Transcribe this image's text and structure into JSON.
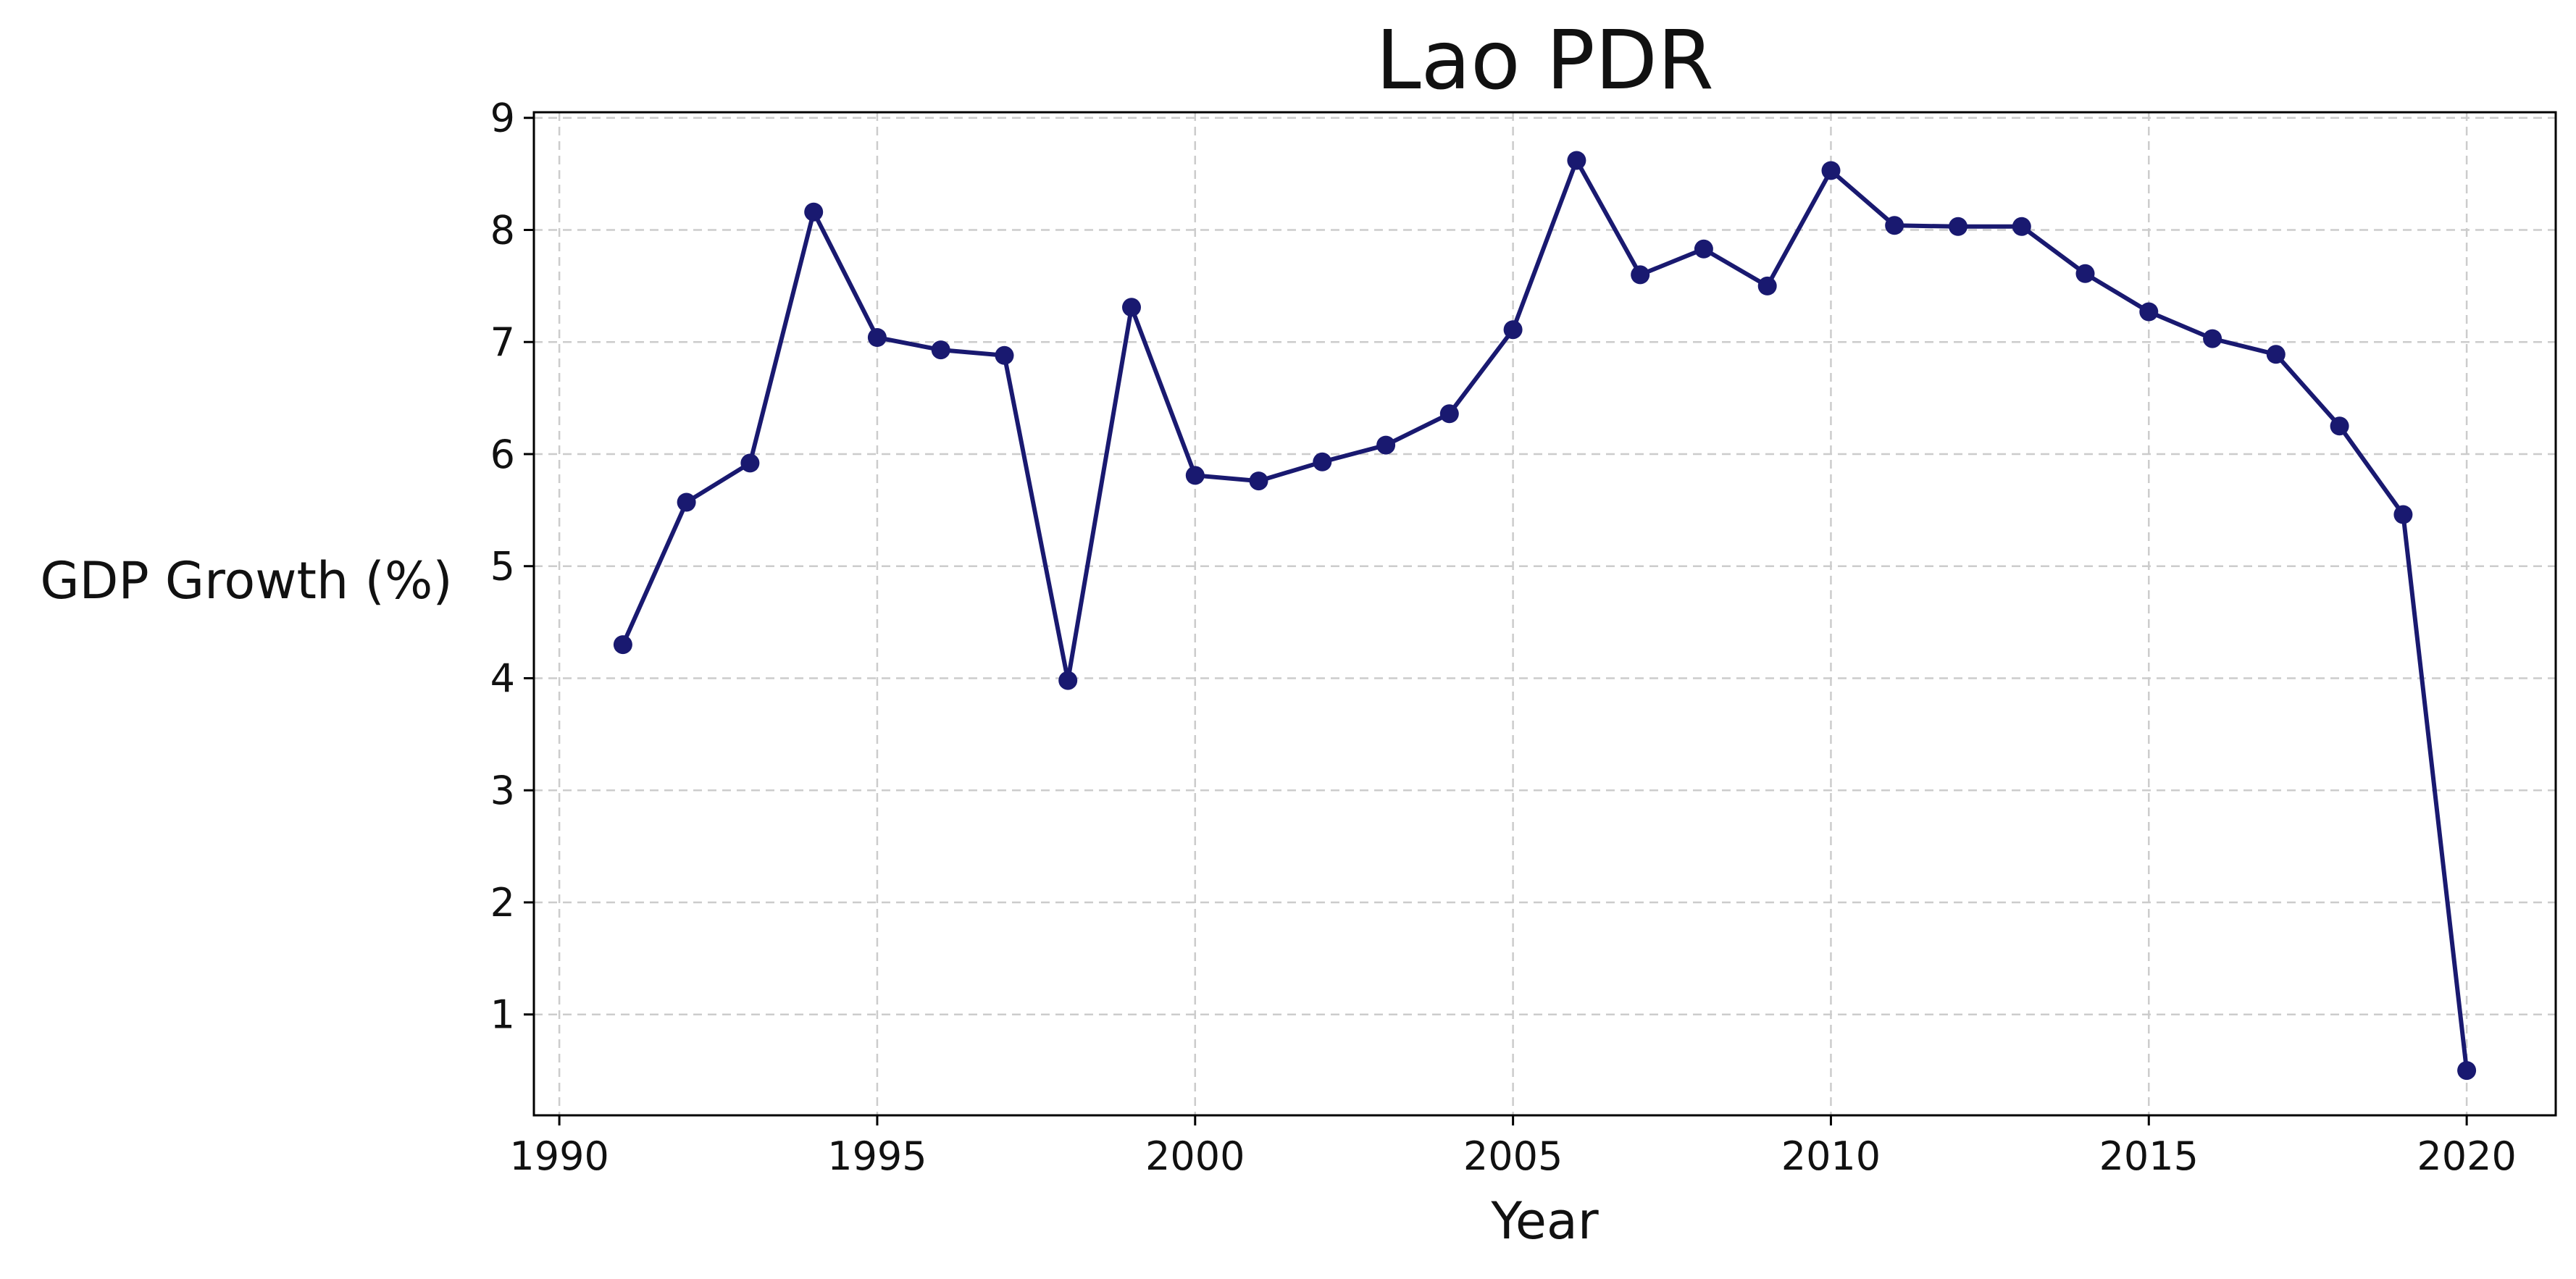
{
  "chart_data": {
    "type": "line",
    "title": "Lao PDR",
    "xlabel": "Year",
    "ylabel": "GDP Growth (%)",
    "xlim": [
      1989.6,
      2021.4
    ],
    "ylim": [
      0.1,
      9.05
    ],
    "xticks": [
      1990,
      1995,
      2000,
      2005,
      2010,
      2015,
      2020
    ],
    "yticks": [
      1,
      2,
      3,
      4,
      5,
      6,
      7,
      8,
      9
    ],
    "grid": true,
    "line_color": "#191970",
    "marker": "circle",
    "series": [
      {
        "x": [
          1991,
          1992,
          1993,
          1994,
          1995,
          1996,
          1997,
          1998,
          1999,
          2000,
          2001,
          2002,
          2003,
          2004,
          2005,
          2006,
          2007,
          2008,
          2009,
          2010,
          2011,
          2012,
          2013,
          2014,
          2015,
          2016,
          2017,
          2018,
          2019,
          2020
        ],
        "values": [
          4.3,
          5.57,
          5.92,
          8.16,
          7.04,
          6.93,
          6.88,
          3.98,
          7.31,
          5.81,
          5.76,
          5.93,
          6.08,
          6.36,
          7.11,
          8.62,
          7.6,
          7.83,
          7.5,
          8.53,
          8.04,
          8.03,
          8.03,
          7.61,
          7.27,
          7.03,
          6.89,
          6.25,
          5.46,
          0.5
        ]
      }
    ]
  }
}
